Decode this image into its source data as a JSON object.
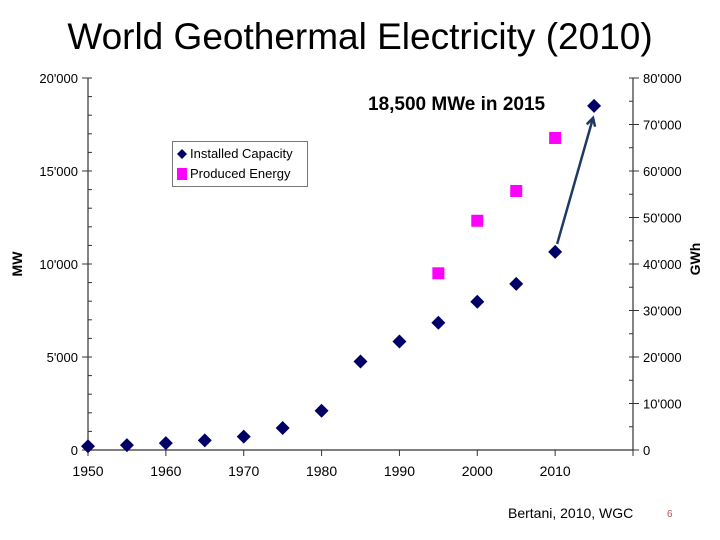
{
  "title": "World Geothermal Electricity (2010)",
  "credit": "Bertani, 2010, WGC",
  "page_number": "6",
  "chart_data": {
    "type": "scatter",
    "title": "World Geothermal Electricity (2010)",
    "xlabel": "",
    "ylabel": "MW",
    "y2label": "GWh",
    "xlim": [
      1950,
      2020
    ],
    "ylim": [
      0,
      20000
    ],
    "y2lim": [
      0,
      80000
    ],
    "x_ticks": [
      "1950",
      "1960",
      "1970",
      "1980",
      "1990",
      "2000",
      "2010"
    ],
    "y_ticks": [
      "0",
      "5'000",
      "10'000",
      "15'000",
      "20'000"
    ],
    "y2_ticks": [
      "0",
      "10'000",
      "20'000",
      "30'000",
      "40'000",
      "50'000",
      "60'000",
      "70'000",
      "80'000"
    ],
    "legend_position": "top-left",
    "grid": false,
    "series": [
      {
        "name": "Installed Capacity",
        "axis": "left",
        "marker": "diamond",
        "color": "#000066",
        "x": [
          1950,
          1955,
          1960,
          1965,
          1970,
          1975,
          1980,
          1985,
          1990,
          1995,
          2000,
          2005,
          2010,
          2015
        ],
        "y": [
          200,
          260,
          370,
          520,
          720,
          1180,
          2110,
          4760,
          5830,
          6840,
          7970,
          8930,
          10650,
          18500
        ]
      },
      {
        "name": "Produced Energy",
        "axis": "right",
        "marker": "square",
        "color": "#ff00ff",
        "x": [
          1995,
          2000,
          2005,
          2010
        ],
        "y": [
          38000,
          49300,
          55700,
          67100
        ]
      }
    ],
    "annotation": "18,500 MWe in 2015",
    "arrow_color": "#1f3864"
  }
}
